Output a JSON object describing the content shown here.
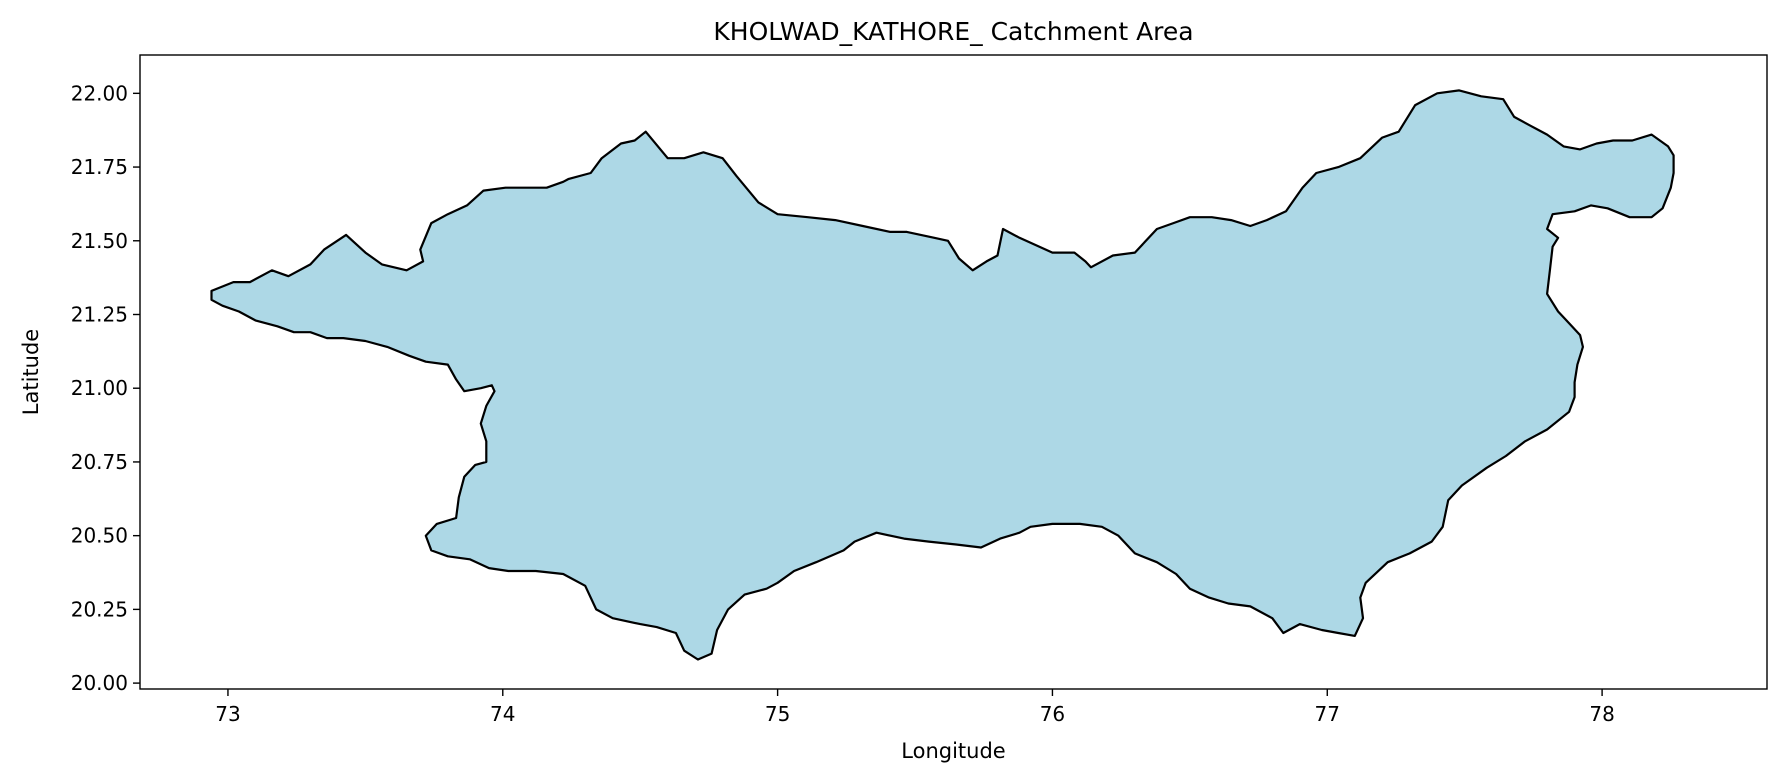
{
  "chart_data": {
    "type": "map",
    "title": "KHOLWAD_KATHORE_ Catchment Area",
    "xlabel": "Longitude",
    "ylabel": "Latitude",
    "xlim": [
      72.68,
      78.6
    ],
    "ylim": [
      19.98,
      22.13
    ],
    "xticks": [
      73,
      74,
      75,
      76,
      77,
      78
    ],
    "xtick_labels": [
      "73",
      "74",
      "75",
      "76",
      "77",
      "78"
    ],
    "yticks": [
      20.0,
      20.25,
      20.5,
      20.75,
      21.0,
      21.25,
      21.5,
      21.75,
      22.0
    ],
    "ytick_labels": [
      "20.00",
      "20.25",
      "20.50",
      "20.75",
      "21.00",
      "21.25",
      "21.50",
      "21.75",
      "22.00"
    ],
    "grid": false,
    "fill_color": "#add8e6",
    "edge_color": "#000000",
    "catchment_boundary": [
      [
        72.94,
        21.33
      ],
      [
        73.02,
        21.36
      ],
      [
        73.08,
        21.36
      ],
      [
        73.16,
        21.4
      ],
      [
        73.22,
        21.38
      ],
      [
        73.3,
        21.42
      ],
      [
        73.35,
        21.47
      ],
      [
        73.43,
        21.52
      ],
      [
        73.5,
        21.46
      ],
      [
        73.56,
        21.42
      ],
      [
        73.65,
        21.4
      ],
      [
        73.71,
        21.43
      ],
      [
        73.7,
        21.47
      ],
      [
        73.74,
        21.56
      ],
      [
        73.8,
        21.59
      ],
      [
        73.87,
        21.62
      ],
      [
        73.93,
        21.67
      ],
      [
        74.01,
        21.68
      ],
      [
        74.08,
        21.68
      ],
      [
        74.16,
        21.68
      ],
      [
        74.22,
        21.7
      ],
      [
        74.24,
        21.71
      ],
      [
        74.32,
        21.73
      ],
      [
        74.36,
        21.78
      ],
      [
        74.43,
        21.83
      ],
      [
        74.48,
        21.84
      ],
      [
        74.52,
        21.87
      ],
      [
        74.6,
        21.78
      ],
      [
        74.66,
        21.78
      ],
      [
        74.73,
        21.8
      ],
      [
        74.8,
        21.78
      ],
      [
        74.85,
        21.72
      ],
      [
        74.93,
        21.63
      ],
      [
        75.0,
        21.59
      ],
      [
        75.11,
        21.58
      ],
      [
        75.21,
        21.57
      ],
      [
        75.31,
        21.55
      ],
      [
        75.41,
        21.53
      ],
      [
        75.47,
        21.53
      ],
      [
        75.57,
        21.51
      ],
      [
        75.62,
        21.5
      ],
      [
        75.66,
        21.44
      ],
      [
        75.71,
        21.4
      ],
      [
        75.76,
        21.43
      ],
      [
        75.8,
        21.45
      ],
      [
        75.82,
        21.54
      ],
      [
        75.88,
        21.51
      ],
      [
        76.0,
        21.46
      ],
      [
        76.08,
        21.46
      ],
      [
        76.12,
        21.43
      ],
      [
        76.14,
        21.41
      ],
      [
        76.22,
        21.45
      ],
      [
        76.3,
        21.46
      ],
      [
        76.38,
        21.54
      ],
      [
        76.44,
        21.56
      ],
      [
        76.5,
        21.58
      ],
      [
        76.58,
        21.58
      ],
      [
        76.65,
        21.57
      ],
      [
        76.72,
        21.55
      ],
      [
        76.78,
        21.57
      ],
      [
        76.85,
        21.6
      ],
      [
        76.91,
        21.68
      ],
      [
        76.96,
        21.73
      ],
      [
        77.04,
        21.75
      ],
      [
        77.12,
        21.78
      ],
      [
        77.2,
        21.85
      ],
      [
        77.26,
        21.87
      ],
      [
        77.32,
        21.96
      ],
      [
        77.4,
        22.0
      ],
      [
        77.48,
        22.01
      ],
      [
        77.56,
        21.99
      ],
      [
        77.64,
        21.98
      ],
      [
        77.68,
        21.92
      ],
      [
        77.74,
        21.89
      ],
      [
        77.8,
        21.86
      ],
      [
        77.86,
        21.82
      ],
      [
        77.92,
        21.81
      ],
      [
        77.98,
        21.83
      ],
      [
        78.04,
        21.84
      ],
      [
        78.11,
        21.84
      ],
      [
        78.18,
        21.86
      ],
      [
        78.24,
        21.82
      ],
      [
        78.26,
        21.79
      ],
      [
        78.26,
        21.73
      ],
      [
        78.25,
        21.68
      ],
      [
        78.22,
        21.61
      ],
      [
        78.18,
        21.58
      ],
      [
        78.1,
        21.58
      ],
      [
        78.02,
        21.61
      ],
      [
        77.96,
        21.62
      ],
      [
        77.9,
        21.6
      ],
      [
        77.82,
        21.59
      ],
      [
        77.8,
        21.54
      ],
      [
        77.84,
        21.51
      ],
      [
        77.82,
        21.48
      ],
      [
        77.81,
        21.4
      ],
      [
        77.8,
        21.32
      ],
      [
        77.84,
        21.26
      ],
      [
        77.88,
        21.22
      ],
      [
        77.92,
        21.18
      ],
      [
        77.93,
        21.14
      ],
      [
        77.91,
        21.08
      ],
      [
        77.9,
        21.02
      ],
      [
        77.9,
        20.97
      ],
      [
        77.88,
        20.92
      ],
      [
        77.8,
        20.86
      ],
      [
        77.72,
        20.82
      ],
      [
        77.65,
        20.77
      ],
      [
        77.58,
        20.73
      ],
      [
        77.49,
        20.67
      ],
      [
        77.44,
        20.62
      ],
      [
        77.42,
        20.53
      ],
      [
        77.38,
        20.48
      ],
      [
        77.3,
        20.44
      ],
      [
        77.22,
        20.41
      ],
      [
        77.14,
        20.34
      ],
      [
        77.12,
        20.29
      ],
      [
        77.13,
        20.22
      ],
      [
        77.1,
        20.16
      ],
      [
        77.04,
        20.17
      ],
      [
        76.98,
        20.18
      ],
      [
        76.9,
        20.2
      ],
      [
        76.84,
        20.17
      ],
      [
        76.8,
        20.22
      ],
      [
        76.72,
        20.26
      ],
      [
        76.64,
        20.27
      ],
      [
        76.57,
        20.29
      ],
      [
        76.5,
        20.32
      ],
      [
        76.45,
        20.37
      ],
      [
        76.38,
        20.41
      ],
      [
        76.3,
        20.44
      ],
      [
        76.24,
        20.5
      ],
      [
        76.18,
        20.53
      ],
      [
        76.1,
        20.54
      ],
      [
        76.0,
        20.54
      ],
      [
        75.92,
        20.53
      ],
      [
        75.88,
        20.51
      ],
      [
        75.81,
        20.49
      ],
      [
        75.74,
        20.46
      ],
      [
        75.65,
        20.47
      ],
      [
        75.55,
        20.48
      ],
      [
        75.46,
        20.49
      ],
      [
        75.36,
        20.51
      ],
      [
        75.28,
        20.48
      ],
      [
        75.24,
        20.45
      ],
      [
        75.14,
        20.41
      ],
      [
        75.06,
        20.38
      ],
      [
        75.0,
        20.34
      ],
      [
        74.96,
        20.32
      ],
      [
        74.88,
        20.3
      ],
      [
        74.82,
        20.25
      ],
      [
        74.78,
        20.18
      ],
      [
        74.76,
        20.1
      ],
      [
        74.71,
        20.08
      ],
      [
        74.66,
        20.11
      ],
      [
        74.63,
        20.17
      ],
      [
        74.56,
        20.19
      ],
      [
        74.5,
        20.2
      ],
      [
        74.4,
        20.22
      ],
      [
        74.34,
        20.25
      ],
      [
        74.3,
        20.33
      ],
      [
        74.22,
        20.37
      ],
      [
        74.12,
        20.38
      ],
      [
        74.02,
        20.38
      ],
      [
        73.95,
        20.39
      ],
      [
        73.88,
        20.42
      ],
      [
        73.8,
        20.43
      ],
      [
        73.74,
        20.45
      ],
      [
        73.72,
        20.5
      ],
      [
        73.76,
        20.54
      ],
      [
        73.83,
        20.56
      ],
      [
        73.84,
        20.63
      ],
      [
        73.86,
        20.7
      ],
      [
        73.9,
        20.74
      ],
      [
        73.94,
        20.75
      ],
      [
        73.94,
        20.82
      ],
      [
        73.92,
        20.88
      ],
      [
        73.94,
        20.94
      ],
      [
        73.97,
        20.99
      ],
      [
        73.96,
        21.01
      ],
      [
        73.92,
        21.0
      ],
      [
        73.86,
        20.99
      ],
      [
        73.83,
        21.03
      ],
      [
        73.8,
        21.08
      ],
      [
        73.72,
        21.09
      ],
      [
        73.66,
        21.11
      ],
      [
        73.58,
        21.14
      ],
      [
        73.5,
        21.16
      ],
      [
        73.42,
        21.17
      ],
      [
        73.36,
        21.17
      ],
      [
        73.3,
        21.19
      ],
      [
        73.24,
        21.19
      ],
      [
        73.18,
        21.21
      ],
      [
        73.1,
        21.23
      ],
      [
        73.04,
        21.26
      ],
      [
        72.98,
        21.28
      ],
      [
        72.94,
        21.3
      ],
      [
        72.94,
        21.33
      ]
    ]
  }
}
